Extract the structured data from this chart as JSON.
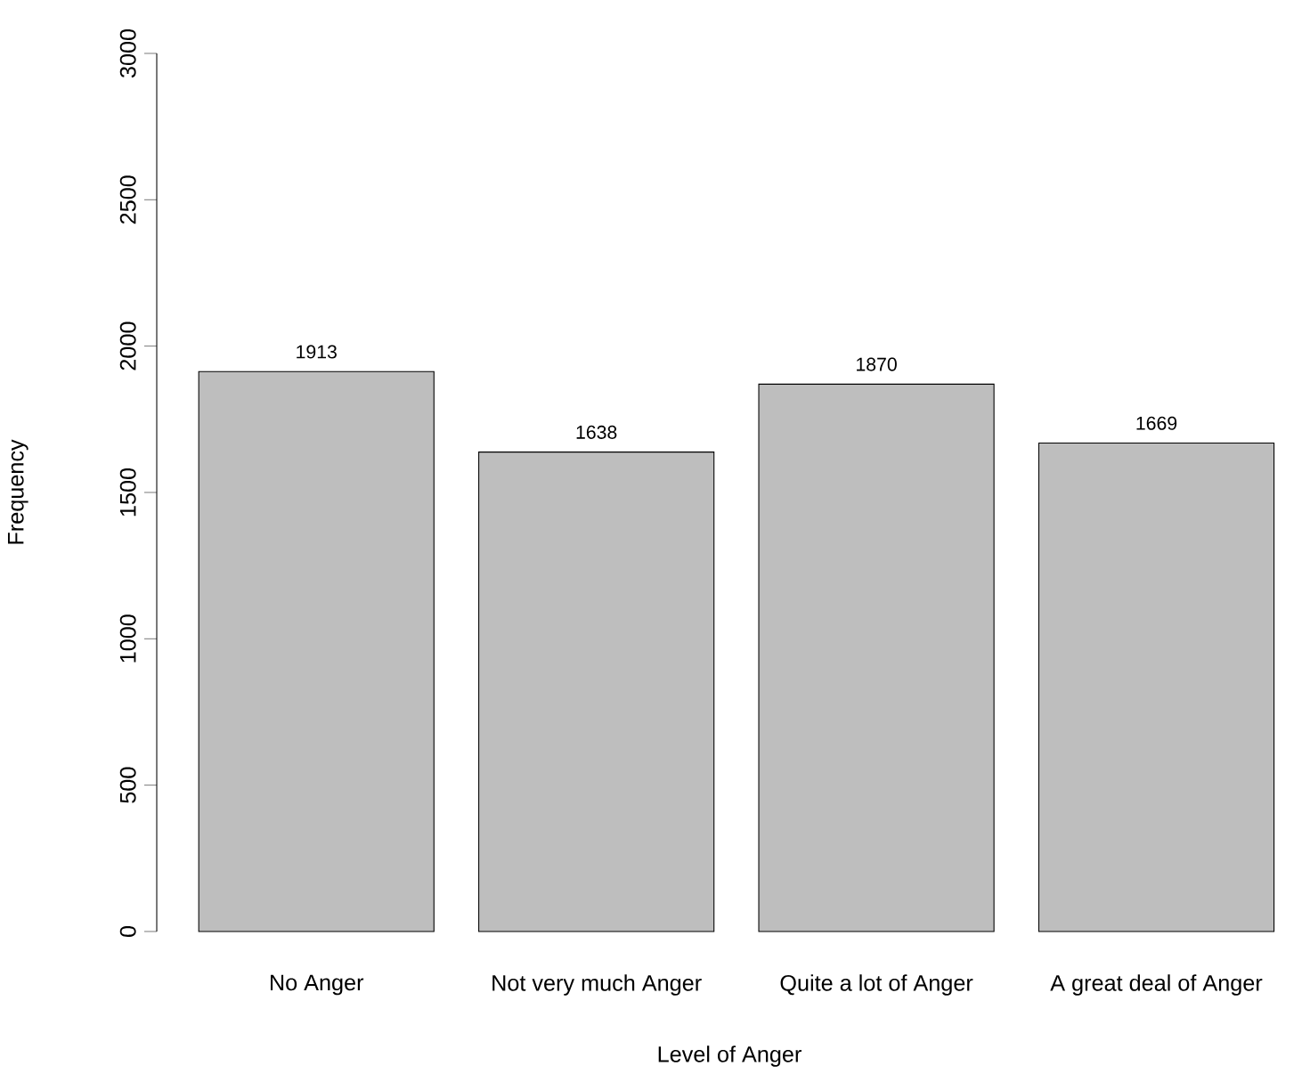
{
  "chart_data": {
    "type": "bar",
    "xlabel": "Level of Anger",
    "ylabel": "Frequency",
    "categories": [
      "No Anger",
      "Not very much Anger",
      "Quite a lot of Anger",
      "A great deal of Anger"
    ],
    "values": [
      1913,
      1638,
      1870,
      1669
    ],
    "color": "#bebebe",
    "data_labels": true,
    "ylim": [
      0,
      3000
    ],
    "yticks": [
      0,
      500,
      1000,
      1500,
      2000,
      2500,
      3000
    ]
  }
}
